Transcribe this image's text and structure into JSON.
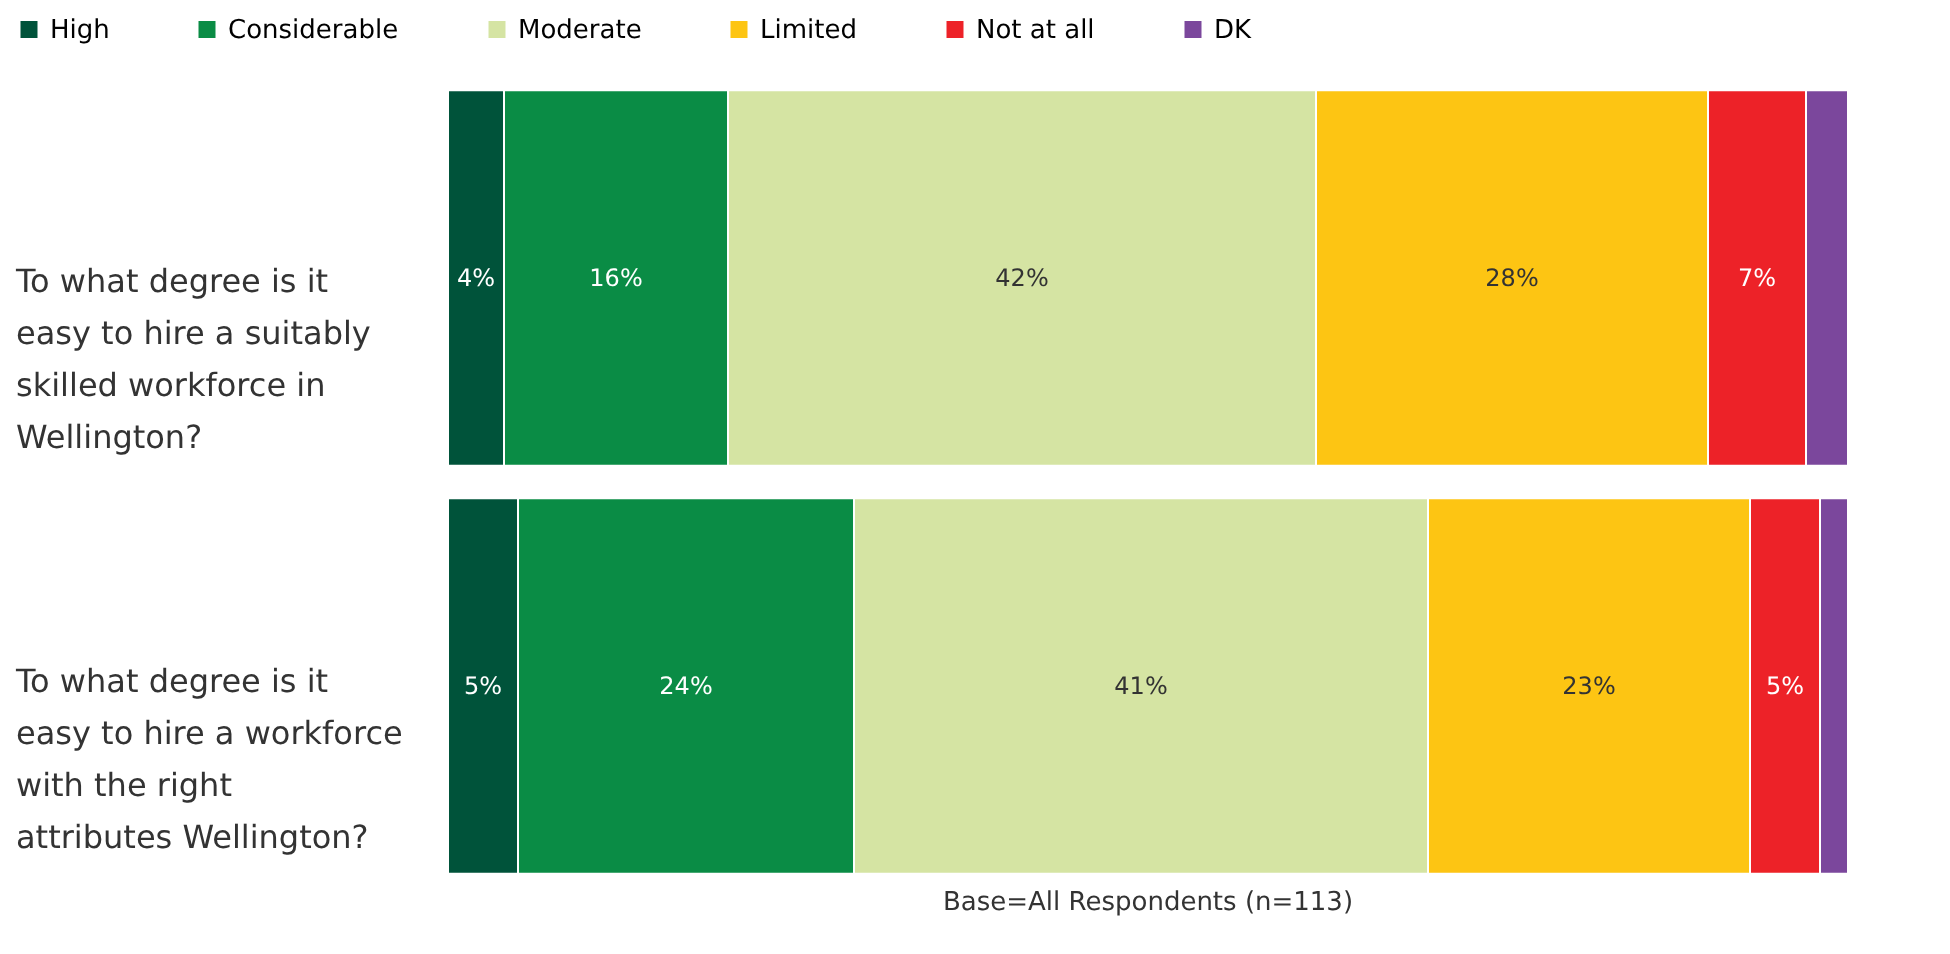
{
  "chart_data": {
    "type": "bar",
    "orientation": "horizontal",
    "stacked": true,
    "legend": "top",
    "categories": [
      "To what degree is  it easy to hire a suitably skilled workforce in Wellington?",
      "To what degree is  it easy to hire a workforce with the right attributes Wellington?"
    ],
    "series": [
      {
        "name": "High",
        "color": "#00533a",
        "values": [
          4,
          5
        ],
        "value_labels": [
          "4%",
          "5%"
        ]
      },
      {
        "name": "Considerable",
        "color": "#0a8c45",
        "values": [
          16,
          24
        ],
        "value_labels": [
          "16%",
          "24%"
        ]
      },
      {
        "name": "Moderate",
        "color": "#d5e4a3",
        "values": [
          42,
          41
        ],
        "value_labels": [
          "42%",
          "41%"
        ]
      },
      {
        "name": "Limited",
        "color": "#fdc513",
        "values": [
          28,
          23
        ],
        "value_labels": [
          "28%",
          "23%"
        ]
      },
      {
        "name": "Not at all",
        "color": "#ed2228",
        "values": [
          7,
          5
        ],
        "value_labels": [
          "7%",
          "5%"
        ]
      },
      {
        "name": "DK",
        "color": "#7b479c",
        "values": [
          3,
          2
        ],
        "value_labels": [
          null,
          null
        ]
      }
    ],
    "annotations": [
      "Base=All Respondents (n=113)"
    ]
  }
}
